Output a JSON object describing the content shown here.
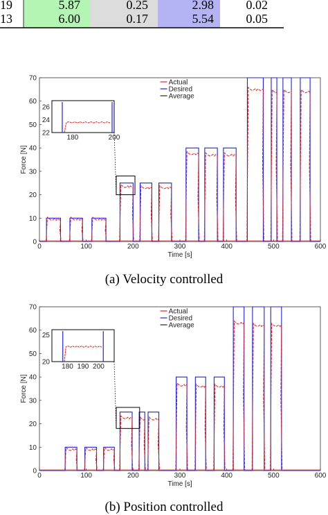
{
  "table": {
    "rows": [
      {
        "id": "19",
        "c1": "5.87",
        "c2": "0.25",
        "c3": "2.98",
        "c4": "0.02"
      },
      {
        "id": "13",
        "c1": "6.00",
        "c2": "0.17",
        "c3": "5.54",
        "c4": "0.05"
      }
    ],
    "colors": {
      "green": "#b4f5b4",
      "blue": "#b4b4f5",
      "grey": "#dcdcdc"
    }
  },
  "captions": {
    "a": "(a) Velocity controlled",
    "b": "(b) Position controlled"
  },
  "chart_data": [
    {
      "type": "line",
      "xlabel": "Time [s]",
      "ylabel": "Force [N]",
      "xlim": [
        0,
        600
      ],
      "ylim": [
        0,
        70
      ],
      "xticks": [
        0,
        100,
        200,
        300,
        400,
        500,
        600
      ],
      "yticks": [
        0,
        10,
        20,
        30,
        40,
        50,
        60,
        70
      ],
      "legend": {
        "placement": "top-center",
        "entries": [
          "Actual",
          "Desired",
          "Average"
        ]
      },
      "colors": {
        "actual": "#e02020",
        "desired": "#2020e0",
        "average": "#222222"
      },
      "desired_pulses": [
        [
          15,
          45,
          10
        ],
        [
          65,
          92,
          10
        ],
        [
          112,
          142,
          10
        ],
        [
          172,
          200,
          25
        ],
        [
          215,
          240,
          25
        ],
        [
          255,
          282,
          25
        ],
        [
          313,
          340,
          40
        ],
        [
          353,
          380,
          40
        ],
        [
          393,
          420,
          40
        ],
        [
          444,
          478,
          70
        ],
        [
          495,
          507,
          70
        ],
        [
          520,
          538,
          70
        ],
        [
          557,
          578,
          70
        ]
      ],
      "actual_pulses": [
        [
          17,
          45,
          9.5
        ],
        [
          67,
          92,
          9.5
        ],
        [
          114,
          142,
          9.5
        ],
        [
          174,
          200,
          23.5
        ],
        [
          217,
          240,
          23
        ],
        [
          257,
          282,
          23
        ],
        [
          315,
          340,
          37.5
        ],
        [
          355,
          380,
          37
        ],
        [
          395,
          420,
          37
        ],
        [
          446,
          478,
          65
        ],
        [
          497,
          507,
          64
        ],
        [
          522,
          538,
          64
        ],
        [
          559,
          578,
          64
        ]
      ],
      "inset": {
        "xlim": [
          170,
          200
        ],
        "ylim": [
          22,
          27
        ],
        "xticks": [
          180,
          200
        ],
        "yticks": [
          22,
          24,
          26
        ],
        "pulse": [
          176,
          199,
          23.6
        ]
      }
    },
    {
      "type": "line",
      "xlabel": "Time [s]",
      "ylabel": "Force [N]",
      "xlim": [
        0,
        600
      ],
      "ylim": [
        0,
        70
      ],
      "xticks": [
        0,
        100,
        200,
        300,
        400,
        500,
        600
      ],
      "yticks": [
        0,
        10,
        20,
        30,
        40,
        50,
        60,
        70
      ],
      "legend": {
        "placement": "top-center",
        "entries": [
          "Actual",
          "Desired",
          "Average"
        ]
      },
      "colors": {
        "actual": "#e02020",
        "desired": "#2020e0",
        "average": "#222222"
      },
      "desired_pulses": [
        [
          55,
          80,
          10
        ],
        [
          97,
          122,
          10
        ],
        [
          137,
          160,
          10
        ],
        [
          172,
          198,
          25
        ],
        [
          213,
          225,
          25
        ],
        [
          232,
          255,
          25
        ],
        [
          292,
          315,
          40
        ],
        [
          333,
          355,
          40
        ],
        [
          373,
          395,
          40
        ],
        [
          414,
          437,
          70
        ],
        [
          455,
          480,
          70
        ],
        [
          494,
          517,
          70
        ]
      ],
      "actual_pulses": [
        [
          57,
          80,
          9
        ],
        [
          99,
          122,
          9
        ],
        [
          139,
          160,
          9
        ],
        [
          174,
          198,
          22.5
        ],
        [
          215,
          225,
          22
        ],
        [
          234,
          255,
          22
        ],
        [
          294,
          315,
          36.5
        ],
        [
          335,
          355,
          36
        ],
        [
          375,
          395,
          36
        ],
        [
          416,
          437,
          63
        ],
        [
          457,
          480,
          62
        ],
        [
          496,
          517,
          62
        ]
      ],
      "inset": {
        "xlim": [
          170,
          210
        ],
        "ylim": [
          20,
          26
        ],
        "xticks": [
          180,
          190,
          200
        ],
        "yticks": [
          20,
          25
        ],
        "pulse": [
          178,
          203,
          22.8
        ]
      }
    }
  ]
}
